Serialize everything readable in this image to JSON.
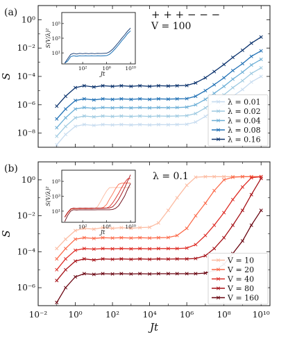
{
  "figure": {
    "shared_xlabel": "Jt"
  },
  "chart_data": [
    {
      "type": "line",
      "panel_label": "(a)",
      "annotations": [
        "+ + + − − −",
        "V = 100"
      ],
      "xlabel": "Jt",
      "ylabel": "S",
      "xscale": "log",
      "yscale": "log",
      "xlim": [
        0.01,
        30000000000
      ],
      "ylim": [
        1e-09,
        10
      ],
      "x_tick_labels": [
        "10^-2",
        "10^0",
        "10^2",
        "10^4",
        "10^6",
        "10^8",
        "10^10"
      ],
      "y_tick_labels": [
        "10^0",
        "10^-2",
        "10^-4",
        "10^-6",
        "10^-8"
      ],
      "legend": "lower-right",
      "x": [
        0.1,
        0.3,
        1,
        3,
        10,
        30,
        100,
        300,
        1000,
        3000,
        10000,
        30000,
        100000,
        300000,
        1000000,
        3000000,
        10000000,
        30000000,
        100000000,
        300000000,
        1000000000,
        3000000000,
        10000000000
      ],
      "series": [
        {
          "name": "λ = 0.01",
          "color": "#c6dbef",
          "values": [
            1.5e-09,
            8e-09,
            3e-08,
            4e-08,
            3.5e-08,
            4e-08,
            3.8e-08,
            4e-08,
            3.8e-08,
            4e-08,
            3.8e-08,
            4e-08,
            3.9e-08,
            4e-08,
            4.2e-08,
            6e-08,
            1.5e-07,
            4e-07,
            1.2e-06,
            4e-06,
            1.2e-05,
            4e-05,
            0.0001
          ]
        },
        {
          "name": "λ = 0.02",
          "color": "#9ecae1",
          "values": [
            6e-09,
            3e-08,
            1.2e-07,
            1.6e-07,
            1.4e-07,
            1.6e-07,
            1.5e-07,
            1.6e-07,
            1.5e-07,
            1.6e-07,
            1.5e-07,
            1.6e-07,
            1.55e-07,
            1.6e-07,
            1.7e-07,
            2.4e-07,
            6e-07,
            1.6e-06,
            5e-06,
            1.6e-05,
            5e-05,
            0.00016,
            0.0004
          ]
        },
        {
          "name": "λ = 0.04",
          "color": "#6baed6",
          "values": [
            2.4e-08,
            1.2e-07,
            5e-07,
            6.4e-07,
            5.6e-07,
            6.4e-07,
            6e-07,
            6.4e-07,
            6e-07,
            6.4e-07,
            6e-07,
            6.4e-07,
            6.2e-07,
            6.4e-07,
            6.8e-07,
            1e-06,
            2.4e-06,
            6.4e-06,
            2e-05,
            6.4e-05,
            0.0002,
            0.00064,
            0.0016
          ]
        },
        {
          "name": "λ = 0.08",
          "color": "#2171b5",
          "values": [
            1e-07,
            5e-07,
            2e-06,
            2.6e-06,
            2.2e-06,
            2.6e-06,
            2.4e-06,
            2.6e-06,
            2.4e-06,
            2.6e-06,
            2.4e-06,
            2.6e-06,
            2.5e-06,
            2.6e-06,
            2.7e-06,
            4e-06,
            1e-05,
            2.6e-05,
            8e-05,
            0.00026,
            0.0008,
            0.0026,
            0.0064
          ]
        },
        {
          "name": "λ = 0.16",
          "color": "#08306b",
          "values": [
            8e-07,
            4e-06,
            1.6e-05,
            2.2e-05,
            1.8e-05,
            2.2e-05,
            2e-05,
            2.2e-05,
            2e-05,
            2.2e-05,
            2e-05,
            2.2e-05,
            2.1e-05,
            2.2e-05,
            2.3e-05,
            3.5e-05,
            8e-05,
            0.00022,
            0.0007,
            0.0022,
            0.007,
            0.022,
            0.06
          ]
        }
      ],
      "inset": {
        "xlabel": "Jt",
        "ylabel": "S(V/λ)²",
        "x_tick_labels": [
          "10^2",
          "10^6",
          "10^10"
        ],
        "y_tick_labels": [
          "10^5",
          "10^3",
          "10^1"
        ]
      }
    },
    {
      "type": "line",
      "panel_label": "(b)",
      "annotations": [
        "λ = 0.1"
      ],
      "xlabel": "Jt",
      "ylabel": "S",
      "xscale": "log",
      "yscale": "log",
      "xlim": [
        0.01,
        30000000000
      ],
      "ylim": [
        1e-07,
        10
      ],
      "x_tick_labels": [
        "10^-2",
        "10^0",
        "10^2",
        "10^4",
        "10^6",
        "10^8",
        "10^10"
      ],
      "y_tick_labels": [
        "10^0",
        "10^-2",
        "10^-4",
        "10^-6"
      ],
      "legend": "lower-right",
      "x": [
        0.1,
        0.3,
        1,
        3,
        10,
        30,
        100,
        300,
        1000,
        3000,
        10000,
        30000,
        100000,
        300000,
        1000000,
        3000000,
        10000000,
        30000000,
        100000000,
        300000000,
        1000000000,
        3000000000,
        10000000000
      ],
      "series": [
        {
          "name": "V = 10",
          "color": "#fcbba1",
          "values": [
            0.00015,
            0.0005,
            0.0015,
            0.002,
            0.0018,
            0.0022,
            0.002,
            0.0022,
            0.002,
            0.0022,
            0.0023,
            0.004,
            0.02,
            0.1,
            0.5,
            1.4,
            1.5,
            1.5,
            1.5,
            1.5,
            1.5,
            1.5,
            1.5
          ]
        },
        {
          "name": "V = 20",
          "color": "#fb6a4a",
          "values": [
            4e-05,
            0.00015,
            0.0005,
            0.0006,
            0.00055,
            0.0006,
            0.00058,
            0.0006,
            0.00058,
            0.0006,
            0.00058,
            0.0006,
            0.00062,
            0.0008,
            0.002,
            0.01,
            0.05,
            0.25,
            1,
            1.4,
            1.5,
            1.5,
            1.5
          ]
        },
        {
          "name": "V = 40",
          "color": "#de2d26",
          "values": [
            1e-05,
            4e-05,
            0.00012,
            0.00015,
            0.00014,
            0.00015,
            0.000145,
            0.00015,
            0.000145,
            0.00015,
            0.000145,
            0.00015,
            0.00015,
            0.00015,
            0.00016,
            0.00025,
            0.0008,
            0.003,
            0.015,
            0.08,
            0.4,
            1.3,
            1.5
          ]
        },
        {
          "name": "V = 80",
          "color": "#a50f15",
          "values": [
            2.5e-06,
            1e-05,
            3e-05,
            4e-05,
            3.5e-05,
            4e-05,
            3.8e-05,
            4e-05,
            3.8e-05,
            4e-05,
            3.8e-05,
            4e-05,
            3.9e-05,
            4e-05,
            4e-05,
            4.2e-05,
            6e-05,
            0.00015,
            0.0006,
            0.003,
            0.02,
            0.15,
            1.2
          ]
        },
        {
          "name": "V = 160",
          "color": "#67000d",
          "values": [
            1.5e-07,
            1e-06,
            4e-06,
            6e-06,
            5.5e-06,
            6e-06,
            5.8e-06,
            6e-06,
            5.8e-06,
            6e-06,
            5.8e-06,
            6e-06,
            6e-06,
            6e-06,
            6e-06,
            6e-06,
            6.5e-06,
            9e-06,
            2e-05,
            8e-05,
            0.0004,
            0.003,
            0.02
          ]
        }
      ],
      "inset": {
        "xlabel": "Jt",
        "ylabel": "S(V/λ)²",
        "x_tick_labels": [
          "10^2",
          "10^6",
          "10^10"
        ],
        "y_tick_labels": [
          "10^5",
          "10^3",
          "10^1"
        ]
      }
    }
  ]
}
